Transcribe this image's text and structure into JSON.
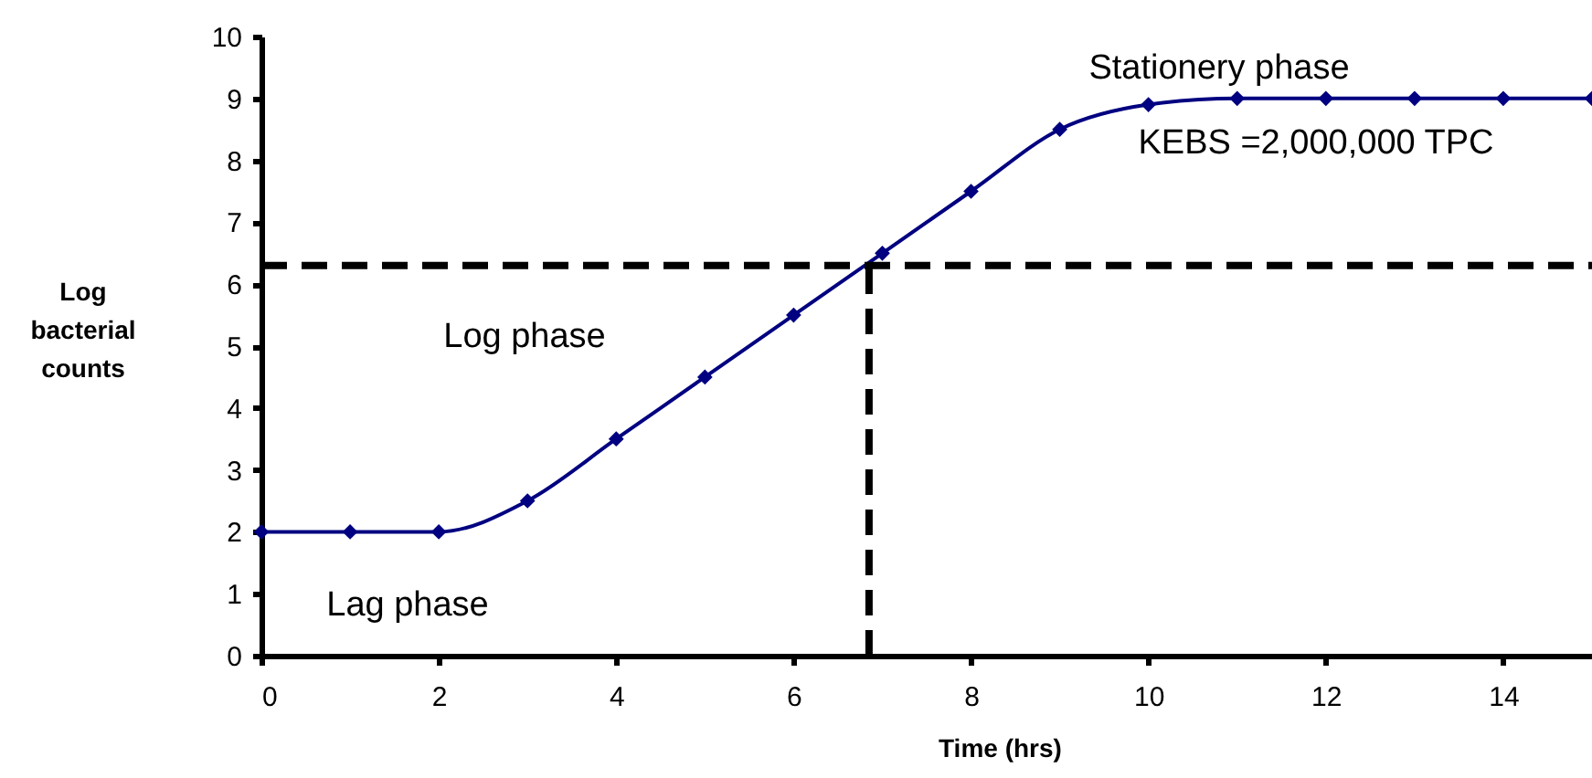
{
  "chart_data": {
    "type": "line",
    "xlabel": "Time (hrs)",
    "ylabel": "Log bacterial counts",
    "x": [
      0,
      1,
      2,
      3,
      4,
      5,
      6,
      7,
      8,
      9,
      10,
      11,
      12,
      13,
      14,
      15
    ],
    "series": [
      {
        "color": "#000080",
        "values": [
          2,
          2,
          2,
          2.5,
          3.5,
          4.5,
          5.5,
          6.5,
          7.5,
          8.5,
          8.9,
          9,
          9,
          9,
          9,
          9
        ]
      }
    ],
    "xlim": [
      0,
      15
    ],
    "xticks": [
      0,
      2,
      4,
      6,
      8,
      10,
      12,
      14
    ],
    "ylim": [
      0,
      10
    ],
    "yticks": [
      0,
      1,
      2,
      3,
      4,
      5,
      6,
      7,
      8,
      9,
      10
    ],
    "marker": "diamond",
    "grid": false,
    "ref_lines": [
      {
        "axis": "y",
        "value": 6.3,
        "color": "#000000",
        "line_style": "dashed"
      },
      {
        "axis": "x",
        "value": 6.85,
        "color": "#000000",
        "line_style": "dashed"
      }
    ],
    "annotations": [
      "Stationery phase",
      "KEBS =2,000,000 TPC",
      "Log phase",
      "Lag phase"
    ]
  }
}
